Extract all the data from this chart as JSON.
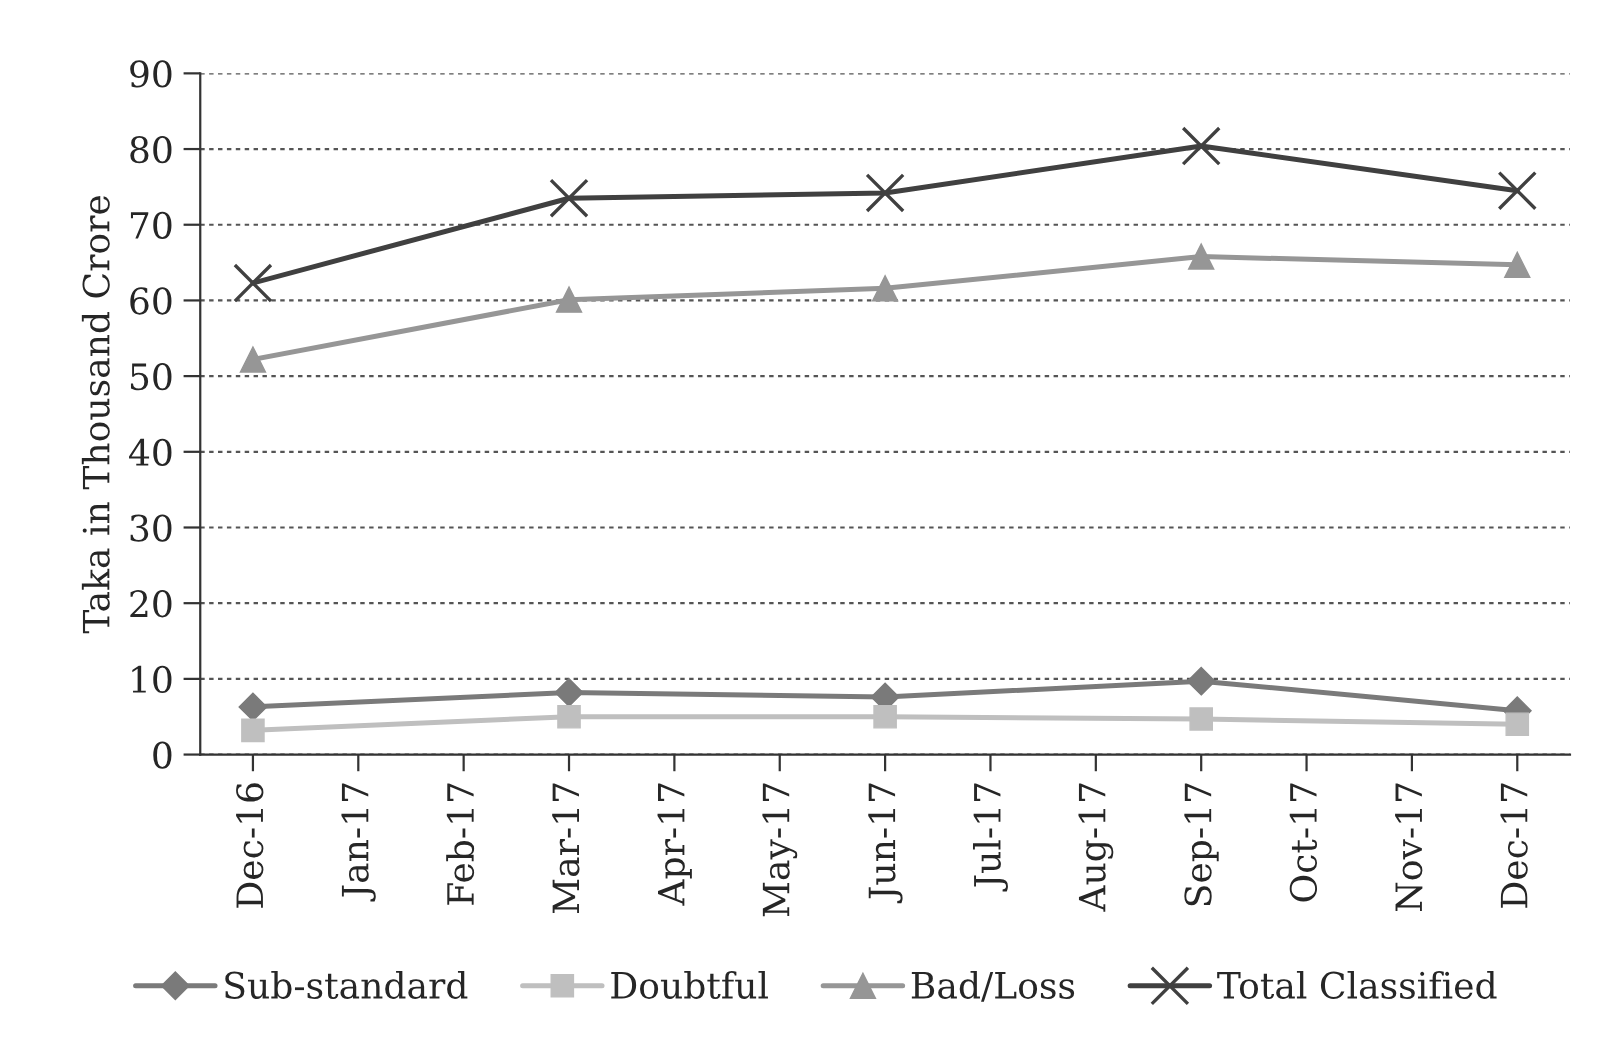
{
  "chart_data": {
    "type": "line",
    "ylabel": "Taka in Thousand Crore",
    "categories": [
      "Dec-16",
      "Jan-17",
      "Feb-17",
      "Mar-17",
      "Apr-17",
      "May-17",
      "Jun-17",
      "Jul-17",
      "Aug-17",
      "Sep-17",
      "Oct-17",
      "Nov-17",
      "Dec-17"
    ],
    "series": [
      {
        "name": "Sub-standard",
        "color": "#7a7a7a",
        "marker": "diamond",
        "values": [
          6.3,
          null,
          null,
          8.2,
          null,
          null,
          7.6,
          null,
          null,
          9.7,
          null,
          null,
          5.8
        ]
      },
      {
        "name": "Doubtful",
        "color": "#bfbfbf",
        "marker": "square",
        "values": [
          3.2,
          null,
          null,
          5.0,
          null,
          null,
          5.0,
          null,
          null,
          4.7,
          null,
          null,
          4.0
        ]
      },
      {
        "name": "Bad/Loss",
        "color": "#969696",
        "marker": "triangle",
        "values": [
          52.2,
          null,
          null,
          60.1,
          null,
          null,
          61.6,
          null,
          null,
          65.8,
          null,
          null,
          64.7
        ]
      },
      {
        "name": "Total Classified",
        "color": "#404040",
        "marker": "cross",
        "values": [
          62.3,
          null,
          null,
          73.5,
          null,
          null,
          74.2,
          null,
          null,
          80.4,
          null,
          null,
          74.5
        ]
      }
    ],
    "ylim": [
      0,
      90
    ],
    "yticks": [
      0,
      10,
      20,
      30,
      40,
      50,
      60,
      70,
      80,
      90
    ],
    "grid": "y",
    "legend": "bottom",
    "line_style": "solid"
  }
}
